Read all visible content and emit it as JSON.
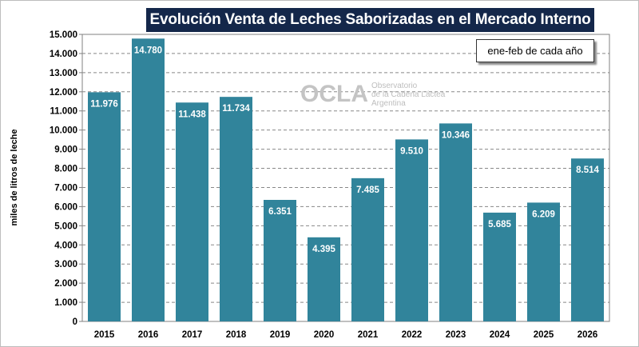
{
  "chart_data": {
    "type": "bar",
    "title": "Evolución  Venta de Leches Saborizadas  en el Mercado Interno",
    "annotation": "ene-feb de cada año",
    "ylabel": "miles de litros de leche",
    "xlabel": "",
    "categories": [
      "2015",
      "2016",
      "2017",
      "2018",
      "2019",
      "2020",
      "2021",
      "2022",
      "2023",
      "2024",
      "2025",
      "2026"
    ],
    "values": [
      11976,
      14780,
      11438,
      11734,
      6351,
      4395,
      7485,
      9510,
      10346,
      5685,
      6209,
      8514
    ],
    "data_labels": [
      "11.976",
      "14.780",
      "11.438",
      "11.734",
      "6.351",
      "4.395",
      "7.485",
      "9.510",
      "10.346",
      "5.685",
      "6.209",
      "8.514"
    ],
    "ylim": [
      0,
      15000
    ],
    "yticks": [
      "0",
      "1.000",
      "2.000",
      "3.000",
      "4.000",
      "5.000",
      "6.000",
      "7.000",
      "8.000",
      "9.000",
      "10.000",
      "11.000",
      "12.000",
      "13.000",
      "14.000",
      "15.000"
    ],
    "grid": true,
    "bar_color": "#31849b"
  },
  "watermark": {
    "logo": "OCLA",
    "text": [
      "Observatorio",
      "de la Cadena Láctea",
      "Argentina"
    ]
  }
}
